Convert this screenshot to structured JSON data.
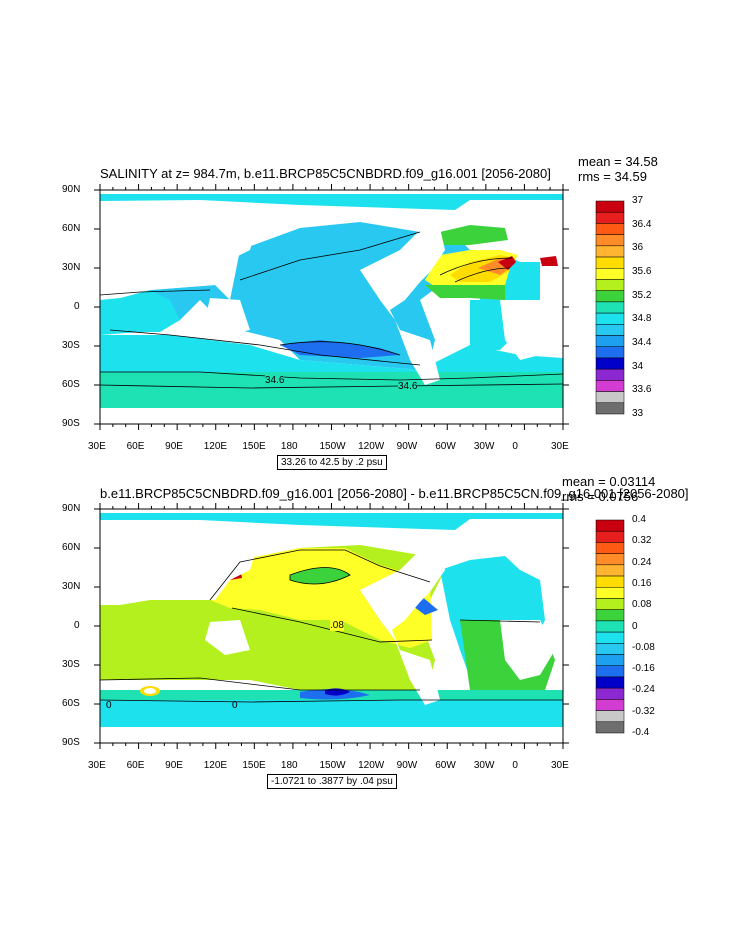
{
  "colors": {
    "ocean_default": "#1ee1ee",
    "land": "#ffffff",
    "contour": "#000000"
  },
  "map_top": {
    "title": "SALINITY at z= 984.7m, b.e11.BRCP85C5CNBDRD.f09_g16.001 [2056-2080]",
    "mean_label": "mean = 34.58",
    "rms_label": "rms = 34.59",
    "lat_labels": [
      "90N",
      "60N",
      "30N",
      "0",
      "30S",
      "60S",
      "90S"
    ],
    "lon_labels": [
      "30E",
      "60E",
      "90E",
      "120E",
      "150E",
      "180",
      "150W",
      "120W",
      "90W",
      "60W",
      "30W",
      "0",
      "30E"
    ],
    "range_text": "33.26 to 42.5 by .2 psu",
    "contour_labels": [
      "34.6",
      "34.6"
    ],
    "legend": {
      "labels": [
        "37",
        "36.4",
        "36",
        "35.6",
        "35.2",
        "34.8",
        "34.4",
        "34",
        "33.6",
        "33"
      ],
      "colors": [
        "#c8000f",
        "#e61e1e",
        "#ff5a14",
        "#ff8c28",
        "#ffb432",
        "#ffdc00",
        "#ffff28",
        "#b4f01e",
        "#3cd23c",
        "#1ee1b4",
        "#1ee1ee",
        "#28c8f0",
        "#1ea0f0",
        "#1e6ef0",
        "#0000c8",
        "#8c28d2",
        "#d23cd2",
        "#c8c8c8",
        "#6e6e6e"
      ]
    }
  },
  "map_bottom": {
    "title": "b.e11.BRCP85C5CNBDRD.f09_g16.001 [2056-2080] - b.e11.BRCP85C5CN.f09_g16.001 [2056-2080]",
    "mean_label": "mean = 0.03114",
    "rms_label": "rms = 0.0756",
    "lat_labels": [
      "90N",
      "60N",
      "30N",
      "0",
      "30S",
      "60S",
      "90S"
    ],
    "lon_labels": [
      "30E",
      "60E",
      "90E",
      "120E",
      "150E",
      "180",
      "150W",
      "120W",
      "90W",
      "60W",
      "30W",
      "0",
      "30E"
    ],
    "range_text": "-1.0721 to .3877 by .04 psu",
    "contour_labels": [
      ".08",
      "0",
      "0"
    ],
    "legend": {
      "labels": [
        "0.4",
        "0.32",
        "0.24",
        "0.16",
        "0.08",
        "0",
        "-0.08",
        "-0.16",
        "-0.24",
        "-0.32",
        "-0.4"
      ],
      "colors": [
        "#c8000f",
        "#e61e1e",
        "#ff5a14",
        "#ff8c28",
        "#ffb432",
        "#ffdc00",
        "#ffff28",
        "#b4f01e",
        "#3cd23c",
        "#1ee1b4",
        "#1ee1ee",
        "#28c8f0",
        "#1ea0f0",
        "#1e6ef0",
        "#0000c8",
        "#8c28d2",
        "#d23cd2",
        "#c8c8c8",
        "#6e6e6e"
      ]
    }
  }
}
